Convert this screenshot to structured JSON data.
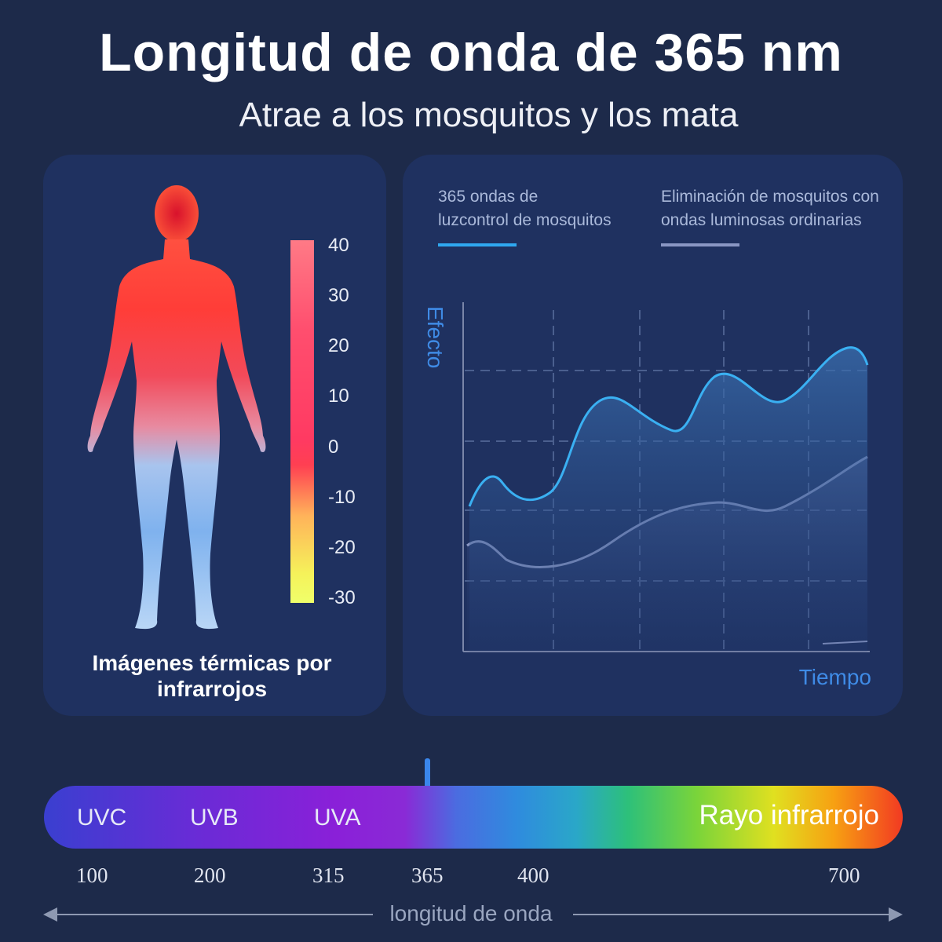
{
  "header": {
    "title": "Longitud de onda de 365 nm",
    "subtitle": "Atrae a los mosquitos y los mata"
  },
  "thermal": {
    "caption_line1": "Imágenes térmicas por",
    "caption_line2": "infrarrojos",
    "scale_ticks": [
      "40",
      "30",
      "20",
      "10",
      "0",
      "-10",
      "-20",
      "-30"
    ]
  },
  "chart": {
    "legend_a_line1": "365 ondas de",
    "legend_a_line2": "luzcontrol de mosquitos",
    "legend_b_line1": "Eliminación de mosquitos con",
    "legend_b_line2": "ondas luminosas ordinarias",
    "legend_a_color": "#2fa8f0",
    "legend_b_color": "#8a97c4",
    "ylabel": "Efecto",
    "xlabel": "Tiempo"
  },
  "spectrum": {
    "bands": [
      "UVC",
      "UVB",
      "UVA"
    ],
    "infrared": "Rayo infrarrojo",
    "wavelengths": [
      "100",
      "200",
      "315",
      "365",
      "400",
      "700"
    ],
    "axis_label": "longitud de onda",
    "marker_color": "#3a86ec"
  }
}
